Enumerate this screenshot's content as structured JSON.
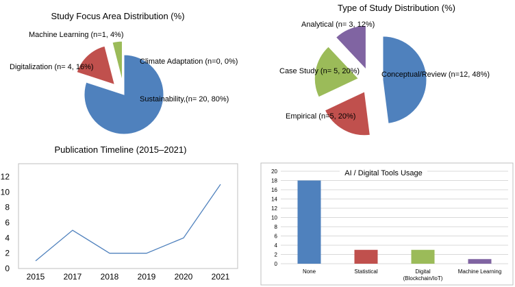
{
  "chart_data": [
    {
      "type": "pie",
      "title": "Study Focus Area Distribution (%)",
      "slices": [
        {
          "label": "Sustainability,(n= 20, 80%)",
          "value": 80,
          "color": "#4f81bd",
          "explode": false
        },
        {
          "label": "Digitalization (n= 4, 16%)",
          "value": 16,
          "color": "#c0504d",
          "explode": true
        },
        {
          "label": "Machine Learning (n=1, 4%)",
          "value": 4,
          "color": "#9bbb59",
          "explode": true
        },
        {
          "label": "Climate Adaptation (n=0, 0%)",
          "value": 0,
          "color": "#8064a2",
          "explode": false
        }
      ]
    },
    {
      "type": "pie",
      "title": "Type of Study Distribution (%)",
      "slices": [
        {
          "label": "Conceptual/Review (n=12, 48%)",
          "value": 48,
          "color": "#4f81bd",
          "explode": true
        },
        {
          "label": "Empirical (n=5, 20%)",
          "value": 20,
          "color": "#c0504d",
          "explode": true
        },
        {
          "label": "Case Study (n= 5, 20%)",
          "value": 20,
          "color": "#9bbb59",
          "explode": true
        },
        {
          "label": "Analytical (n= 3, 12%)",
          "value": 12,
          "color": "#8064a2",
          "explode": true
        }
      ]
    },
    {
      "type": "line",
      "title": "Publication Timeline (2015–2021)",
      "x": [
        "2015",
        "2017",
        "2018",
        "2019",
        "2020",
        "2021"
      ],
      "values": [
        1,
        5,
        2,
        2,
        4,
        11
      ],
      "ylim": [
        0,
        12
      ],
      "yticks": [
        0,
        2,
        4,
        6,
        8,
        10,
        12
      ],
      "color": "#4f81bd",
      "grid": false
    },
    {
      "type": "bar",
      "title": "AI / Digital Tools Usage",
      "categories": [
        "None",
        "Statistical",
        "Digital\n(Blockchain/IoT)",
        "Machine Learning"
      ],
      "values": [
        18,
        3,
        3,
        1
      ],
      "colors": [
        "#4f81bd",
        "#c0504d",
        "#9bbb59",
        "#8064a2"
      ],
      "ylim": [
        0,
        20
      ],
      "yticks": [
        0,
        2,
        4,
        6,
        8,
        10,
        12,
        14,
        16,
        18,
        20
      ],
      "grid": true
    }
  ]
}
